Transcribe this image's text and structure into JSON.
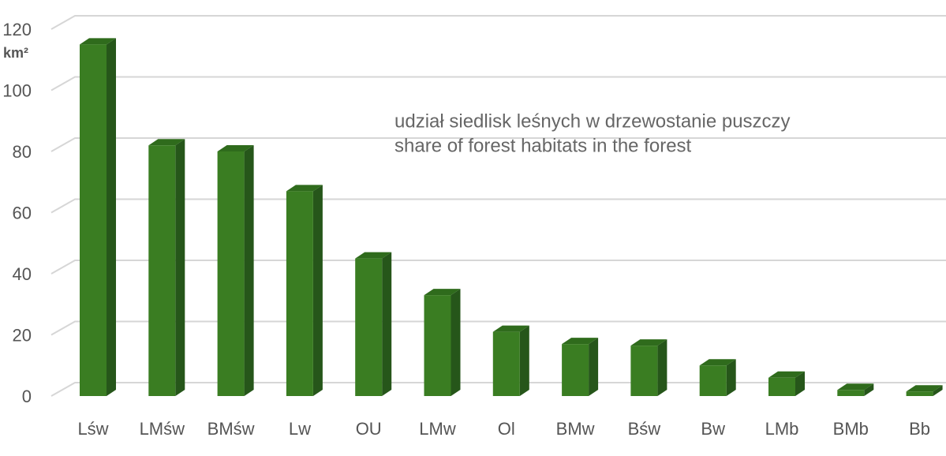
{
  "chart_data": {
    "type": "bar3d",
    "y_label": "km²",
    "annotation": [
      "udział siedlisk leśnych w drzewostanie puszczy",
      "share of forest habitats in the forest"
    ],
    "categories": [
      "Lśw",
      "LMśw",
      "BMśw",
      "Lw",
      "OU",
      "LMw",
      "Ol",
      "BMw",
      "Bśw",
      "Bw",
      "LMb",
      "BMb",
      "Bb"
    ],
    "values": [
      115,
      82,
      80,
      67,
      45,
      33,
      21,
      17,
      16.5,
      10,
      6,
      2,
      1.5
    ],
    "color": "#3a7d22",
    "ylim": [
      0,
      120
    ],
    "yticks": [
      0,
      20,
      40,
      60,
      80,
      100,
      120
    ],
    "grid": true
  }
}
